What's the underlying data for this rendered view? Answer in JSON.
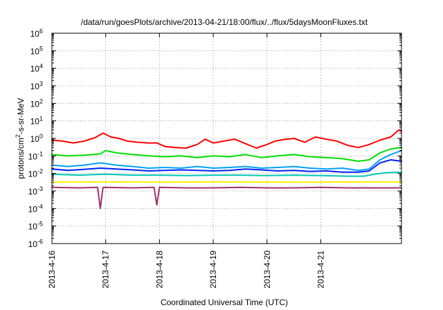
{
  "chart_data": {
    "type": "line",
    "title": "/data/run/goesPlots/archive/2013-04-21/18:00/flux/../flux/5daysMoonFluxes.txt",
    "xlabel": "Coordinated Universal Time (UTC)",
    "ylabel": {
      "base": "protons/cm",
      "sup": "2",
      "rest": "-s-sr-MeV"
    },
    "yscale": "log",
    "ylim_exp": [
      -6,
      6
    ],
    "xlim_days": [
      0,
      6.5
    ],
    "x_ticks": [
      {
        "day": 0,
        "label": "2013-4-16"
      },
      {
        "day": 1,
        "label": "2013-4-17"
      },
      {
        "day": 2,
        "label": "2013-4-18"
      },
      {
        "day": 3,
        "label": "2013-4-19"
      },
      {
        "day": 4,
        "label": "2013-4-20"
      },
      {
        "day": 5,
        "label": "2013-4-21"
      }
    ],
    "y_ticks": [
      {
        "exp": 6,
        "label": "6"
      },
      {
        "exp": 5,
        "label": "5"
      },
      {
        "exp": 4,
        "label": "4"
      },
      {
        "exp": 3,
        "label": "3"
      },
      {
        "exp": 2,
        "label": "2"
      },
      {
        "exp": 1,
        "label": "1"
      },
      {
        "exp": 0,
        "label": "0"
      },
      {
        "exp": -1,
        "label": "-1"
      },
      {
        "exp": -2,
        "label": "-2"
      },
      {
        "exp": -3,
        "label": "-3"
      },
      {
        "exp": -4,
        "label": "-4"
      },
      {
        "exp": -5,
        "label": "-5"
      },
      {
        "exp": -6,
        "label": "-6"
      }
    ],
    "grid": true,
    "series": [
      {
        "color": "#ff0000",
        "x": [
          0.0,
          0.2,
          0.4,
          0.6,
          0.8,
          0.95,
          1.1,
          1.25,
          1.4,
          1.6,
          1.8,
          1.95,
          2.1,
          2.3,
          2.5,
          2.7,
          2.85,
          3.0,
          3.2,
          3.4,
          3.6,
          3.8,
          4.0,
          4.15,
          4.3,
          4.5,
          4.7,
          4.9,
          5.1,
          5.3,
          5.5,
          5.7,
          5.9,
          6.1,
          6.3,
          6.45,
          6.5
        ],
        "y": [
          0.8,
          0.7,
          0.55,
          0.7,
          1.1,
          2.0,
          1.2,
          1.0,
          0.7,
          0.6,
          0.55,
          0.55,
          0.35,
          0.3,
          0.28,
          0.45,
          0.9,
          0.55,
          0.7,
          0.9,
          0.5,
          0.28,
          0.45,
          0.7,
          0.85,
          1.0,
          0.6,
          1.2,
          0.9,
          0.7,
          0.4,
          0.3,
          0.45,
          0.8,
          1.2,
          3.0,
          2.5
        ]
      },
      {
        "color": "#00e000",
        "x": [
          0.0,
          0.3,
          0.6,
          0.9,
          1.0,
          1.2,
          1.5,
          1.8,
          2.1,
          2.4,
          2.7,
          3.0,
          3.3,
          3.6,
          3.9,
          4.2,
          4.5,
          4.8,
          5.1,
          5.4,
          5.7,
          5.9,
          6.1,
          6.3,
          6.5
        ],
        "y": [
          0.12,
          0.1,
          0.11,
          0.13,
          0.2,
          0.15,
          0.12,
          0.1,
          0.09,
          0.1,
          0.08,
          0.1,
          0.09,
          0.12,
          0.08,
          0.1,
          0.12,
          0.09,
          0.08,
          0.07,
          0.05,
          0.06,
          0.15,
          0.25,
          0.3
        ]
      },
      {
        "color": "#00a0ff",
        "x": [
          0.0,
          0.3,
          0.6,
          0.9,
          1.2,
          1.5,
          1.8,
          2.1,
          2.4,
          2.7,
          3.0,
          3.3,
          3.6,
          3.9,
          4.2,
          4.5,
          4.8,
          5.1,
          5.4,
          5.7,
          5.9,
          6.1,
          6.3,
          6.5
        ],
        "y": [
          0.03,
          0.025,
          0.03,
          0.04,
          0.03,
          0.025,
          0.02,
          0.022,
          0.02,
          0.025,
          0.02,
          0.022,
          0.025,
          0.02,
          0.022,
          0.025,
          0.02,
          0.018,
          0.02,
          0.015,
          0.018,
          0.06,
          0.12,
          0.2
        ]
      },
      {
        "color": "#0020ff",
        "x": [
          0.0,
          0.3,
          0.6,
          0.9,
          1.2,
          1.5,
          1.8,
          2.1,
          2.4,
          2.7,
          3.0,
          3.3,
          3.6,
          3.9,
          4.2,
          4.5,
          4.8,
          5.1,
          5.4,
          5.7,
          5.9,
          6.1,
          6.3,
          6.5
        ],
        "y": [
          0.018,
          0.015,
          0.017,
          0.02,
          0.018,
          0.016,
          0.014,
          0.015,
          0.016,
          0.015,
          0.014,
          0.015,
          0.018,
          0.016,
          0.014,
          0.015,
          0.013,
          0.014,
          0.012,
          0.012,
          0.014,
          0.04,
          0.06,
          0.05
        ]
      },
      {
        "color": "#00c8b4",
        "x": [
          0.0,
          0.5,
          1.0,
          1.5,
          2.0,
          2.5,
          3.0,
          3.5,
          4.0,
          4.5,
          5.0,
          5.5,
          5.8,
          6.0,
          6.2,
          6.5
        ],
        "y": [
          0.009,
          0.008,
          0.009,
          0.008,
          0.008,
          0.0075,
          0.008,
          0.008,
          0.0075,
          0.008,
          0.0075,
          0.007,
          0.007,
          0.009,
          0.011,
          0.012
        ]
      },
      {
        "color": "#ffee00",
        "x": [
          0.0,
          1.0,
          2.0,
          3.0,
          4.0,
          5.0,
          6.0,
          6.5
        ],
        "y": [
          0.0032,
          0.0033,
          0.0032,
          0.0033,
          0.0032,
          0.0032,
          0.0033,
          0.0032
        ]
      },
      {
        "color": "#a0306a",
        "x": [
          0.0,
          0.5,
          0.85,
          0.9,
          0.95,
          1.5,
          1.9,
          1.95,
          2.0,
          2.5,
          3.0,
          3.5,
          4.0,
          4.5,
          5.0,
          5.5,
          6.0,
          6.5
        ],
        "y": [
          0.0016,
          0.0015,
          0.0016,
          0.0001,
          0.0016,
          0.0015,
          0.0016,
          0.00016,
          0.0016,
          0.0015,
          0.0015,
          0.0016,
          0.0015,
          0.0015,
          0.0016,
          0.0015,
          0.0015,
          0.0015
        ]
      }
    ]
  }
}
